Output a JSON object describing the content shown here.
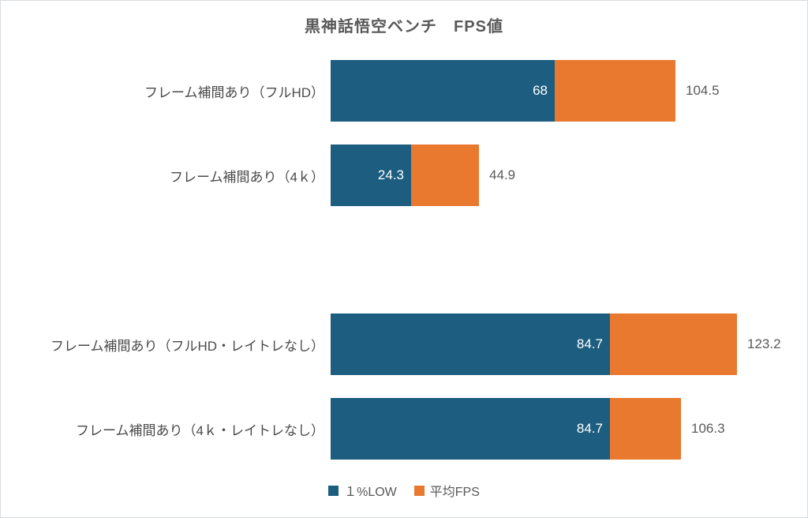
{
  "chart_data": {
    "type": "bar",
    "orientation": "horizontal",
    "stacking": "overlap (平均FPS bar behind, １%LOW bar in front; rendered as low segment + remainder segment)",
    "title": "黒神話悟空ベンチ　FPS値",
    "categories": [
      "フレーム補間あり（フルHD）",
      "フレーム補間あり（4ｋ）",
      "",
      "フレーム補間あり（フルHD・レイトレなし）",
      "フレーム補間あり（4ｋ・レイトレなし）"
    ],
    "series": [
      {
        "name": "１%LOW",
        "color": "#1d5e80",
        "values": [
          68,
          24.3,
          null,
          84.7,
          84.7
        ]
      },
      {
        "name": "平均FPS",
        "color": "#e8792f",
        "values": [
          104.5,
          44.9,
          null,
          123.2,
          106.3
        ]
      }
    ],
    "data_labels": {
      "low_inside_bar_white": true,
      "avg_outside_bar_gray": true
    },
    "xlim": [
      0,
      140
    ],
    "grid": false,
    "axis_lines": false,
    "legend_position": "bottom"
  },
  "colors": {
    "background": "#ffffff",
    "border": "#d9dde0",
    "title_text": "#595959",
    "category_text": "#4a4a4a",
    "value_text": "#595959",
    "inside_value_text": "#ffffff"
  }
}
